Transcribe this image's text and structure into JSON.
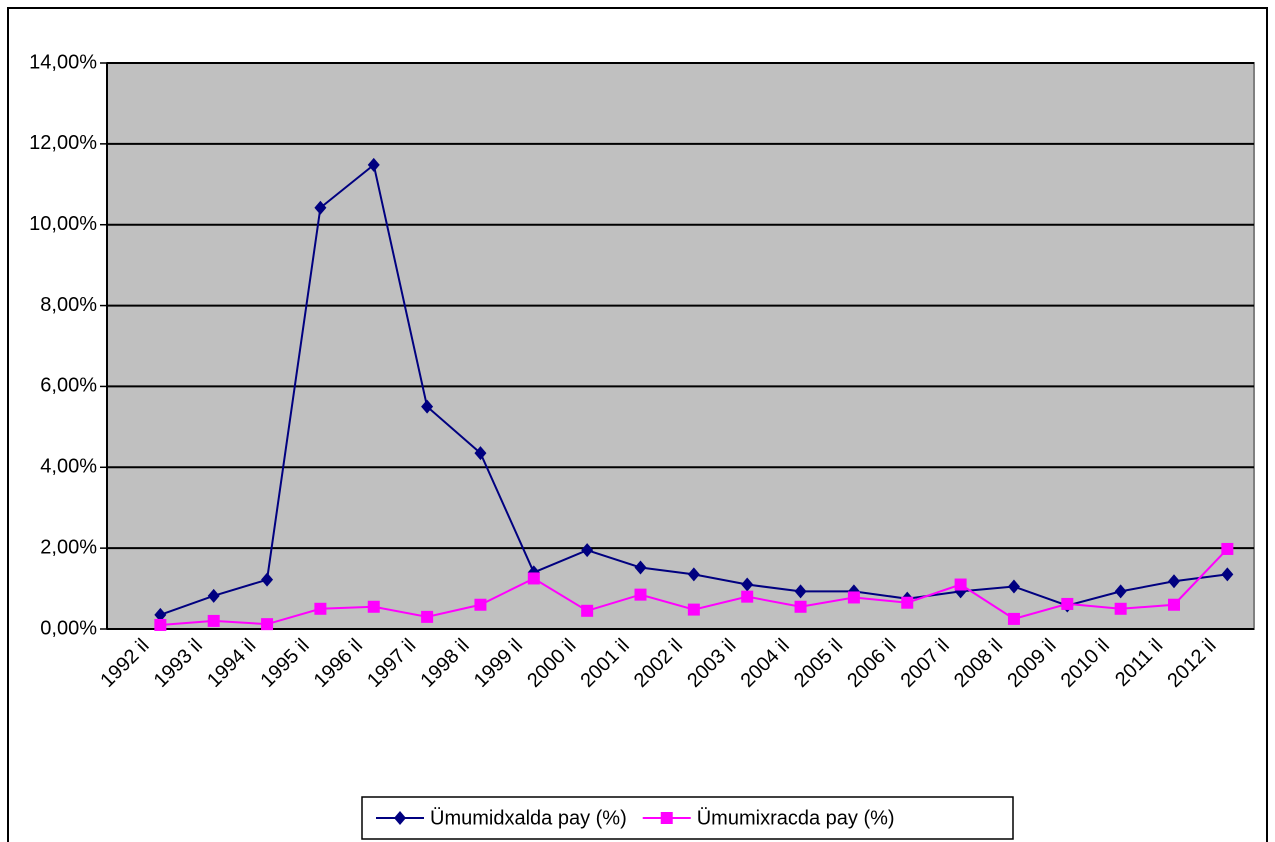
{
  "chart_data": {
    "type": "line",
    "categories": [
      "1992 il",
      "1993 il",
      "1994 il",
      "1995 il",
      "1996 il",
      "1997 il",
      "1998 il",
      "1999 il",
      "2000 il",
      "2001 il",
      "2002 il",
      "2003 il",
      "2004 il",
      "2005 il",
      "2006 il",
      "2007 il",
      "2008 il",
      "2009 il",
      "2010 il",
      "2011 il",
      "2012 il"
    ],
    "series": [
      {
        "name": "Ümumidxalda pay (%)",
        "color": "#000080",
        "marker": "diamond",
        "values": [
          0.35,
          0.82,
          1.22,
          10.42,
          11.48,
          5.5,
          4.35,
          1.4,
          1.95,
          1.52,
          1.35,
          1.1,
          0.93,
          0.93,
          0.75,
          0.93,
          1.05,
          0.58,
          0.93,
          1.18,
          1.35
        ]
      },
      {
        "name": "Ümumixracda pay (%)",
        "color": "#ff00ff",
        "marker": "square",
        "values": [
          0.1,
          0.2,
          0.12,
          0.5,
          0.55,
          0.3,
          0.6,
          1.25,
          0.45,
          0.85,
          0.48,
          0.8,
          0.55,
          0.78,
          0.65,
          1.1,
          0.25,
          0.62,
          0.5,
          0.6,
          1.98
        ]
      }
    ],
    "ylim": [
      0,
      14
    ],
    "yticks": [
      {
        "value": 0,
        "label": "0,00%"
      },
      {
        "value": 2,
        "label": "2,00%"
      },
      {
        "value": 4,
        "label": "4,00%"
      },
      {
        "value": 6,
        "label": "6,00%"
      },
      {
        "value": 8,
        "label": "8,00%"
      },
      {
        "value": 10,
        "label": "10,00%"
      },
      {
        "value": 12,
        "label": "12,00%"
      },
      {
        "value": 14,
        "label": "14,00%"
      }
    ],
    "grid": true,
    "legend": "bottom"
  }
}
